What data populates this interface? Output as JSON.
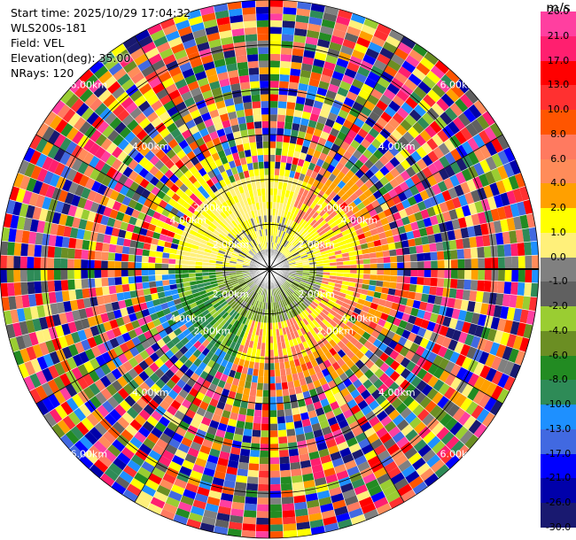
{
  "header": {
    "start_time": "Start time: 2025/10/29 17:04:32",
    "instrument": "WLS200s-181",
    "field": "Field: VEL",
    "elevation": "Elevation(deg): 35.00",
    "nrays": "NRays: 120"
  },
  "colorbar": {
    "unit": "m/s",
    "ticks": [
      "26.0",
      "21.0",
      "17.0",
      "13.0",
      "10.0",
      "8.0",
      "6.0",
      "4.0",
      "2.0",
      "1.0",
      "0.0",
      "-1.0",
      "-2.0",
      "-4.0",
      "-6.0",
      "-8.0",
      "-10.0",
      "-13.0",
      "-17.0",
      "-21.0",
      "-26.0",
      "-30.0"
    ],
    "colors": [
      "#ff3fa0",
      "#ff1f6f",
      "#ff0000",
      "#ff3030",
      "#ff5500",
      "#ff7a60",
      "#ff8c5a",
      "#ffa000",
      "#ffff00",
      "#fff07a",
      "#808080",
      "#606060",
      "#9acd32",
      "#6b8e23",
      "#228b22",
      "#2e8b57",
      "#1e90ff",
      "#4169e1",
      "#0000ff",
      "#0000aa",
      "#191970"
    ]
  },
  "chart_data": {
    "type": "ppi",
    "field": "VEL",
    "unit": "m/s",
    "elevation_deg": 35.0,
    "n_rays": 120,
    "range_labels": [
      "2.00km",
      "4.00km",
      "6.00km"
    ],
    "inner_ring_labels": [
      "2.00km",
      "4.00km"
    ],
    "max_range_km": 6.0,
    "value_min": -30.0,
    "value_max": 26.0
  }
}
